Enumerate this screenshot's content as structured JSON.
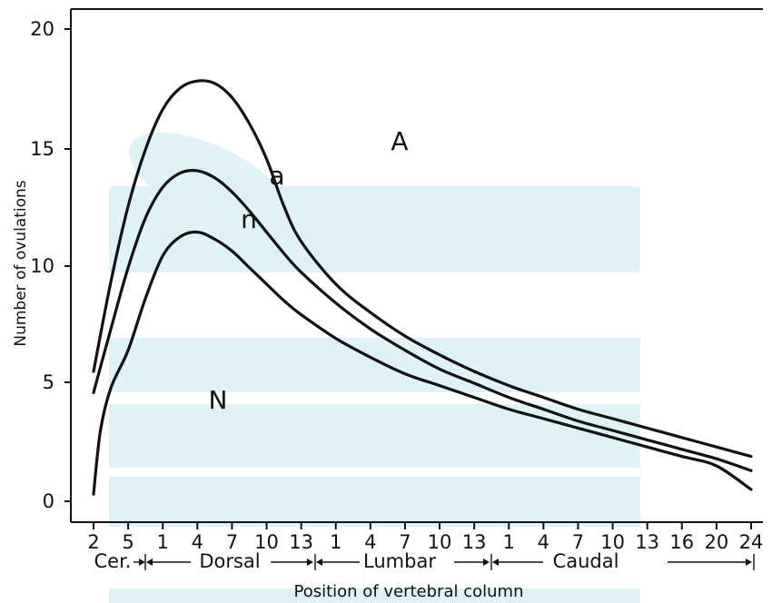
{
  "chart_data": {
    "type": "line",
    "xlabel": "Position of vertebral column",
    "ylabel": "Number of ovulations",
    "ylim": [
      0,
      20
    ],
    "y_ticks": [
      "0",
      "5",
      "10",
      "15",
      "20"
    ],
    "x_tick_labels": [
      "2",
      "5",
      "1",
      "4",
      "7",
      "10",
      "13",
      "1",
      "4",
      "7",
      "10",
      "13",
      "1",
      "4",
      "7",
      "10",
      "13",
      "16",
      "20",
      "24"
    ],
    "regions": [
      "Cer.",
      "Dorsal",
      "Lumbar",
      "Caudal"
    ],
    "annotations": [
      "A",
      "a",
      "n",
      "N"
    ],
    "grid": false,
    "series": [
      {
        "name": "A",
        "x": [
          0,
          0.5,
          1,
          1.5,
          2,
          2.5,
          3,
          3.5,
          4,
          4.5,
          5,
          5.5,
          6,
          7,
          8,
          9,
          10,
          11,
          12,
          13,
          14,
          15,
          16,
          17,
          18,
          19
        ],
        "values": [
          5.5,
          9.3,
          12.5,
          14.9,
          16.6,
          17.5,
          17.8,
          17.7,
          17.1,
          16.0,
          14.5,
          12.5,
          11.0,
          9.2,
          8.0,
          7.0,
          6.2,
          5.5,
          4.9,
          4.4,
          3.9,
          3.5,
          3.1,
          2.7,
          2.3,
          1.9
        ]
      },
      {
        "name": "a",
        "x": [
          0,
          0.5,
          1,
          1.5,
          2,
          2.5,
          3,
          3.5,
          4,
          4.5,
          5,
          5.5,
          6,
          7,
          8,
          9,
          10,
          11,
          12,
          13,
          14,
          15,
          16,
          17,
          18,
          19
        ],
        "values": [
          4.6,
          7.3,
          9.9,
          12.0,
          13.3,
          13.9,
          14.0,
          13.7,
          13.1,
          12.3,
          11.4,
          10.5,
          9.7,
          8.4,
          7.3,
          6.4,
          5.6,
          5.0,
          4.4,
          3.9,
          3.4,
          3.0,
          2.6,
          2.2,
          1.8,
          1.3
        ]
      },
      {
        "name": "n",
        "x": [
          0,
          0.2,
          0.5,
          1,
          1.5,
          2,
          2.5,
          3,
          3.5,
          4,
          4.5,
          5,
          5.5,
          6,
          7,
          8,
          9,
          10,
          11,
          12,
          13,
          14,
          15,
          16,
          17,
          18,
          19
        ],
        "values": [
          0.3,
          3.0,
          4.8,
          6.4,
          8.6,
          10.4,
          11.2,
          11.4,
          11.1,
          10.6,
          9.9,
          9.2,
          8.5,
          7.9,
          6.9,
          6.1,
          5.4,
          4.9,
          4.4,
          3.9,
          3.5,
          3.1,
          2.7,
          2.3,
          1.9,
          1.5,
          0.5
        ]
      }
    ]
  }
}
